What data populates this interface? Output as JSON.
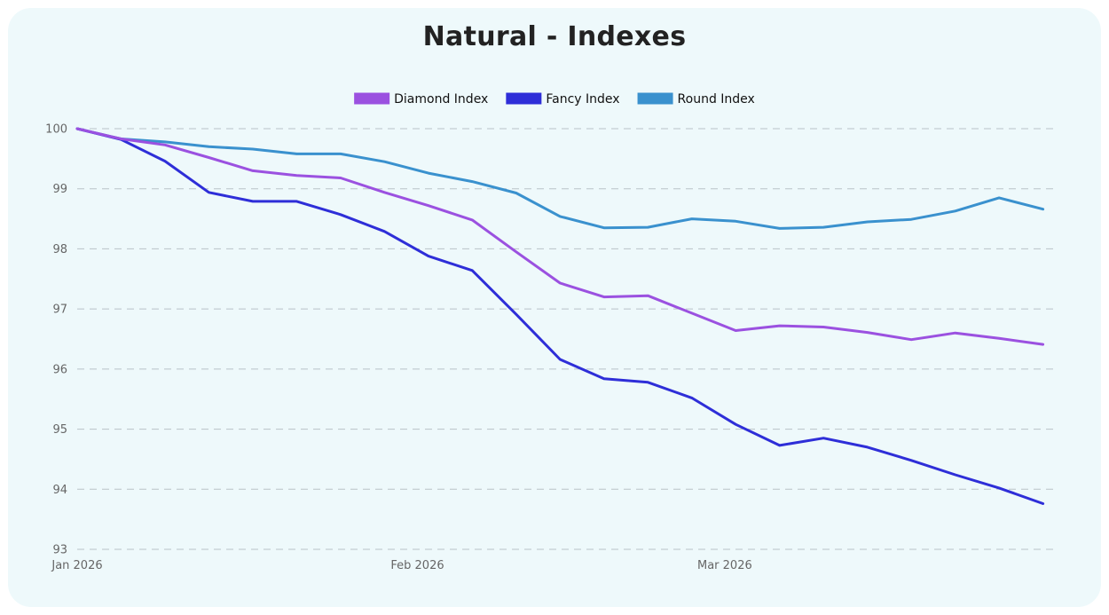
{
  "chart_data": {
    "type": "line",
    "title": "Natural - Indexes",
    "xlabel": "",
    "ylabel": "",
    "x_tick_labels": [
      {
        "date": "2026-01-01",
        "label": "Jan 2026"
      },
      {
        "date": "2026-02-01",
        "label": "Feb 2026"
      },
      {
        "date": "2026-03-01",
        "label": "Mar 2026"
      }
    ],
    "xlim": [
      "2026-01-01",
      "2026-03-31"
    ],
    "ylim": [
      93,
      100
    ],
    "y_ticks": [
      93,
      94,
      95,
      96,
      97,
      98,
      99,
      100
    ],
    "grid": "horizontal dashed",
    "legend_position": "top-center",
    "x": [
      "2026-01-01",
      "2026-01-05",
      "2026-01-09",
      "2026-01-13",
      "2026-01-17",
      "2026-01-21",
      "2026-01-25",
      "2026-01-29",
      "2026-02-02",
      "2026-02-06",
      "2026-02-10",
      "2026-02-14",
      "2026-02-18",
      "2026-02-22",
      "2026-02-26",
      "2026-03-02",
      "2026-03-06",
      "2026-03-10",
      "2026-03-14",
      "2026-03-18",
      "2026-03-22",
      "2026-03-26",
      "2026-03-30"
    ],
    "series": [
      {
        "name": "Diamond Index",
        "color": "#9b51e0",
        "values": [
          100.0,
          99.83,
          99.73,
          99.52,
          99.3,
          99.22,
          99.18,
          98.94,
          98.72,
          98.48,
          97.95,
          97.43,
          97.2,
          97.22,
          96.93,
          96.64,
          96.72,
          96.7,
          96.61,
          96.49,
          96.6,
          96.51,
          96.41
        ]
      },
      {
        "name": "Fancy Index",
        "color": "#2e2ed8",
        "values": [
          100.0,
          99.82,
          99.46,
          98.94,
          98.79,
          98.79,
          98.57,
          98.29,
          97.88,
          97.64,
          96.91,
          96.16,
          95.84,
          95.78,
          95.52,
          95.08,
          94.73,
          94.85,
          94.7,
          94.48,
          94.24,
          94.02,
          93.76
        ]
      },
      {
        "name": "Round Index",
        "color": "#3a91ce",
        "values": [
          100.0,
          99.83,
          99.78,
          99.7,
          99.66,
          99.58,
          99.58,
          99.45,
          99.26,
          99.12,
          98.93,
          98.54,
          98.35,
          98.36,
          98.5,
          98.46,
          98.34,
          98.36,
          98.45,
          98.49,
          98.63,
          98.85,
          98.66
        ]
      }
    ]
  }
}
